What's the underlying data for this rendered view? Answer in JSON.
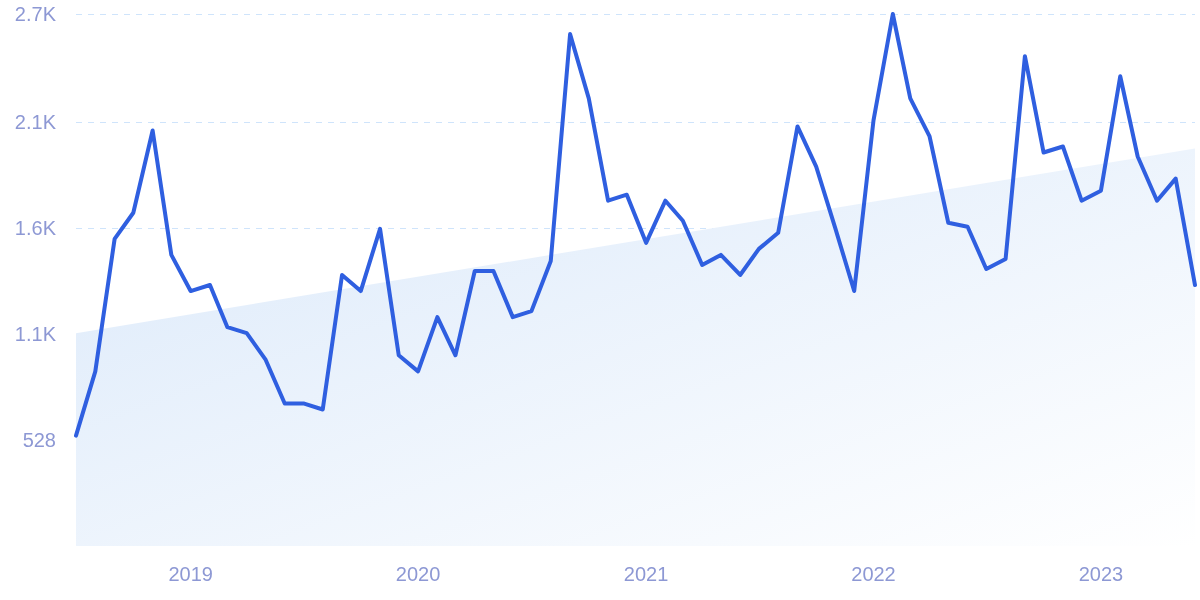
{
  "chart_data": {
    "type": "line",
    "x": [
      "2018-07",
      "2018-08",
      "2018-09",
      "2018-10",
      "2018-11",
      "2018-12",
      "2019-01",
      "2019-02",
      "2019-03",
      "2019-04",
      "2019-05",
      "2019-06",
      "2019-07",
      "2019-08",
      "2019-09",
      "2019-10",
      "2019-11",
      "2019-12",
      "2020-01",
      "2020-02",
      "2020-03",
      "2020-04",
      "2020-05",
      "2020-06",
      "2020-07",
      "2020-08",
      "2020-09",
      "2020-10",
      "2020-11",
      "2020-12",
      "2021-01",
      "2021-02",
      "2021-03",
      "2021-04",
      "2021-05",
      "2021-06",
      "2021-07",
      "2021-08",
      "2021-09",
      "2021-10",
      "2021-11",
      "2021-12",
      "2022-01",
      "2022-02",
      "2022-03",
      "2022-04",
      "2022-05",
      "2022-06",
      "2022-07",
      "2022-08",
      "2022-09",
      "2022-10",
      "2022-11",
      "2022-12",
      "2023-01",
      "2023-02",
      "2023-03",
      "2023-04",
      "2023-05",
      "2023-06"
    ],
    "series": [
      {
        "type": "area",
        "x": [
          "2018-07",
          "2023-06"
        ],
        "values": [
          1060,
          1980
        ],
        "color": "#dbe9fa"
      },
      {
        "color": "#2f5fe0",
        "values": [
          550,
          870,
          1530,
          1660,
          2070,
          1450,
          1270,
          1300,
          1090,
          1060,
          930,
          710,
          710,
          680,
          1350,
          1270,
          1580,
          950,
          870,
          1140,
          950,
          1370,
          1370,
          1140,
          1170,
          1420,
          2550,
          2230,
          1720,
          1750,
          1510,
          1720,
          1620,
          1400,
          1450,
          1350,
          1480,
          1560,
          2090,
          1890,
          1580,
          1270,
          2120,
          2650,
          2230,
          2040,
          1610,
          1590,
          1380,
          1430,
          2440,
          1960,
          1990,
          1720,
          1770,
          2340,
          1940,
          1720,
          1830,
          1300
        ]
      }
    ],
    "xlim": [
      "2018-07",
      "2023-06"
    ],
    "xticks": [
      "2019",
      "2020",
      "2021",
      "2022",
      "2023"
    ],
    "ylim": [
      0,
      2650
    ],
    "yticks": [
      528,
      {
        "value": 1056,
        "label": "1.1K"
      },
      {
        "value": 1584,
        "label": "1.6K"
      },
      {
        "value": 2112,
        "label": "2.1K"
      },
      {
        "value": 2650,
        "label": "2.7K"
      }
    ],
    "grid": "y",
    "line_style": "solid",
    "marker": "none"
  }
}
